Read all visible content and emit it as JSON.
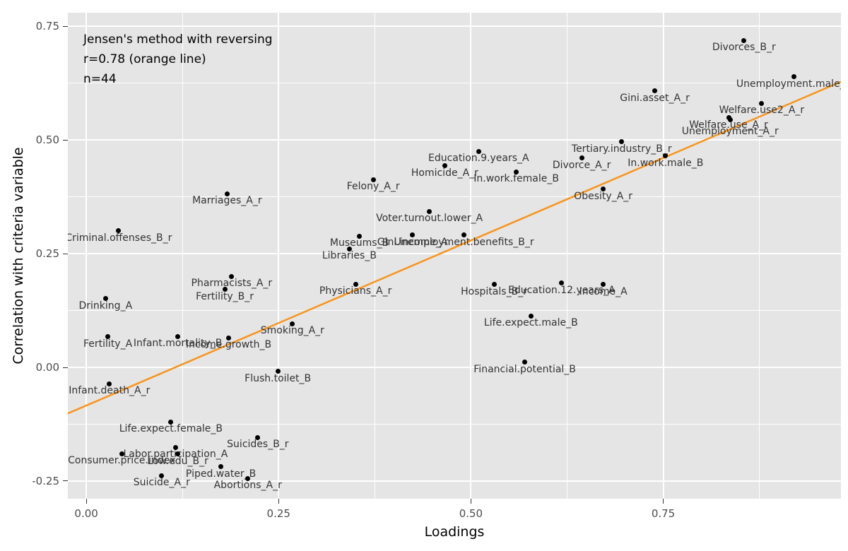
{
  "colors": {
    "background": "#FFFFFF",
    "panel_background": "#E5E5E5",
    "grid": "#FFFFFF",
    "point": "#000000",
    "point_label": "#333333",
    "tick_label": "#4D4D4D",
    "tick_mark": "#333333",
    "axis_title": "#000000",
    "annotation_text": "#000000",
    "regression_line": "#F8941C"
  },
  "chart_data": {
    "type": "scatter",
    "annotation": {
      "lines": [
        "Jensen's method with reversing",
        "r=0.78 (orange line)",
        "n=44"
      ]
    },
    "xlabel": "Loadings",
    "ylabel": "Correlation with criteria variable",
    "xlim": [
      -0.024,
      0.981
    ],
    "ylim": [
      -0.289,
      0.78
    ],
    "x_ticks": [
      0.0,
      0.25,
      0.5,
      0.75
    ],
    "x_minor_ticks": [
      0.125,
      0.375,
      0.625,
      0.875
    ],
    "y_ticks": [
      -0.25,
      0.0,
      0.25,
      0.5,
      0.75
    ],
    "y_minor_ticks": [
      -0.125,
      0.125,
      0.375,
      0.625
    ],
    "regression_line": {
      "r": 0.78,
      "n": 44,
      "intercept": -0.084,
      "slope": 0.726
    },
    "points": [
      {
        "label": "Divorces_B_r",
        "x": 0.855,
        "y": 0.719
      },
      {
        "label": "Unemployment.male_B",
        "x": 0.92,
        "y": 0.639
      },
      {
        "label": "Gini.asset_A_r",
        "x": 0.739,
        "y": 0.608
      },
      {
        "label": "Welfare.use2_A_r",
        "x": 0.878,
        "y": 0.581
      },
      {
        "label": "Welfare.use_A_r",
        "x": 0.835,
        "y": 0.549
      },
      {
        "label": "Unemployment_A_r",
        "x": 0.837,
        "y": 0.545,
        "label_dy": 7
      },
      {
        "label": "Tertiary.industry_B_r",
        "x": 0.696,
        "y": 0.496
      },
      {
        "label": "In.work.male_B",
        "x": 0.753,
        "y": 0.465
      },
      {
        "label": "Divorce_A_r",
        "x": 0.644,
        "y": 0.46
      },
      {
        "label": "Education.9.years_A",
        "x": 0.51,
        "y": 0.475
      },
      {
        "label": "Homicide_A_r",
        "x": 0.466,
        "y": 0.443
      },
      {
        "label": "In.work.female_B",
        "x": 0.559,
        "y": 0.43
      },
      {
        "label": "Felony_A_r",
        "x": 0.373,
        "y": 0.413
      },
      {
        "label": "Obesity_A_r",
        "x": 0.672,
        "y": 0.392
      },
      {
        "label": "Marriages_A_r",
        "x": 0.183,
        "y": 0.382
      },
      {
        "label": "Voter.turnout.lower_A",
        "x": 0.446,
        "y": 0.343
      },
      {
        "label": "Criminal.offenses_B_r",
        "x": 0.042,
        "y": 0.3
      },
      {
        "label": "Museums_B",
        "x": 0.355,
        "y": 0.289
      },
      {
        "label": "Gini.income_A",
        "x": 0.424,
        "y": 0.291
      },
      {
        "label": "Unemployment.benefits_B_r",
        "x": 0.491,
        "y": 0.291
      },
      {
        "label": "Libraries_B",
        "x": 0.342,
        "y": 0.261
      },
      {
        "label": "Pharmacists_A_r",
        "x": 0.189,
        "y": 0.2
      },
      {
        "label": "Fertility_B_r",
        "x": 0.18,
        "y": 0.171
      },
      {
        "label": "Drinking_A",
        "x": 0.025,
        "y": 0.151
      },
      {
        "label": "Physicians_A_r",
        "x": 0.35,
        "y": 0.183
      },
      {
        "label": "Hospitals_B_r",
        "x": 0.53,
        "y": 0.182
      },
      {
        "label": "Education.12.years_A",
        "x": 0.618,
        "y": 0.185
      },
      {
        "label": "Income_A",
        "x": 0.672,
        "y": 0.182
      },
      {
        "label": "Life.expect.male_B",
        "x": 0.578,
        "y": 0.113
      },
      {
        "label": "Smoking_A_r",
        "x": 0.268,
        "y": 0.096
      },
      {
        "label": "Fertility_A",
        "x": 0.028,
        "y": 0.067
      },
      {
        "label": "Infant.mortality_B",
        "x": 0.119,
        "y": 0.068
      },
      {
        "label": "Income.growth_B",
        "x": 0.185,
        "y": 0.065
      },
      {
        "label": "Financial.potential_B",
        "x": 0.57,
        "y": 0.011
      },
      {
        "label": "Flush.toilet_B",
        "x": 0.249,
        "y": -0.009
      },
      {
        "label": "Infant.death_A_r",
        "x": 0.03,
        "y": -0.036
      },
      {
        "label": "Life.expect.female_B",
        "x": 0.11,
        "y": -0.12
      },
      {
        "label": "Suicides_B_r",
        "x": 0.223,
        "y": -0.154
      },
      {
        "label": "Labor.participation_A",
        "x": 0.116,
        "y": -0.176
      },
      {
        "label": "Consumer.price.index",
        "x": 0.046,
        "y": -0.19
      },
      {
        "label": "Low.edu_B_r",
        "x": 0.119,
        "y": -0.191
      },
      {
        "label": "Piped.water_B",
        "x": 0.175,
        "y": -0.219
      },
      {
        "label": "Suicide_A_r",
        "x": 0.098,
        "y": -0.238
      },
      {
        "label": "Abortions_A_r",
        "x": 0.21,
        "y": -0.244
      }
    ]
  }
}
